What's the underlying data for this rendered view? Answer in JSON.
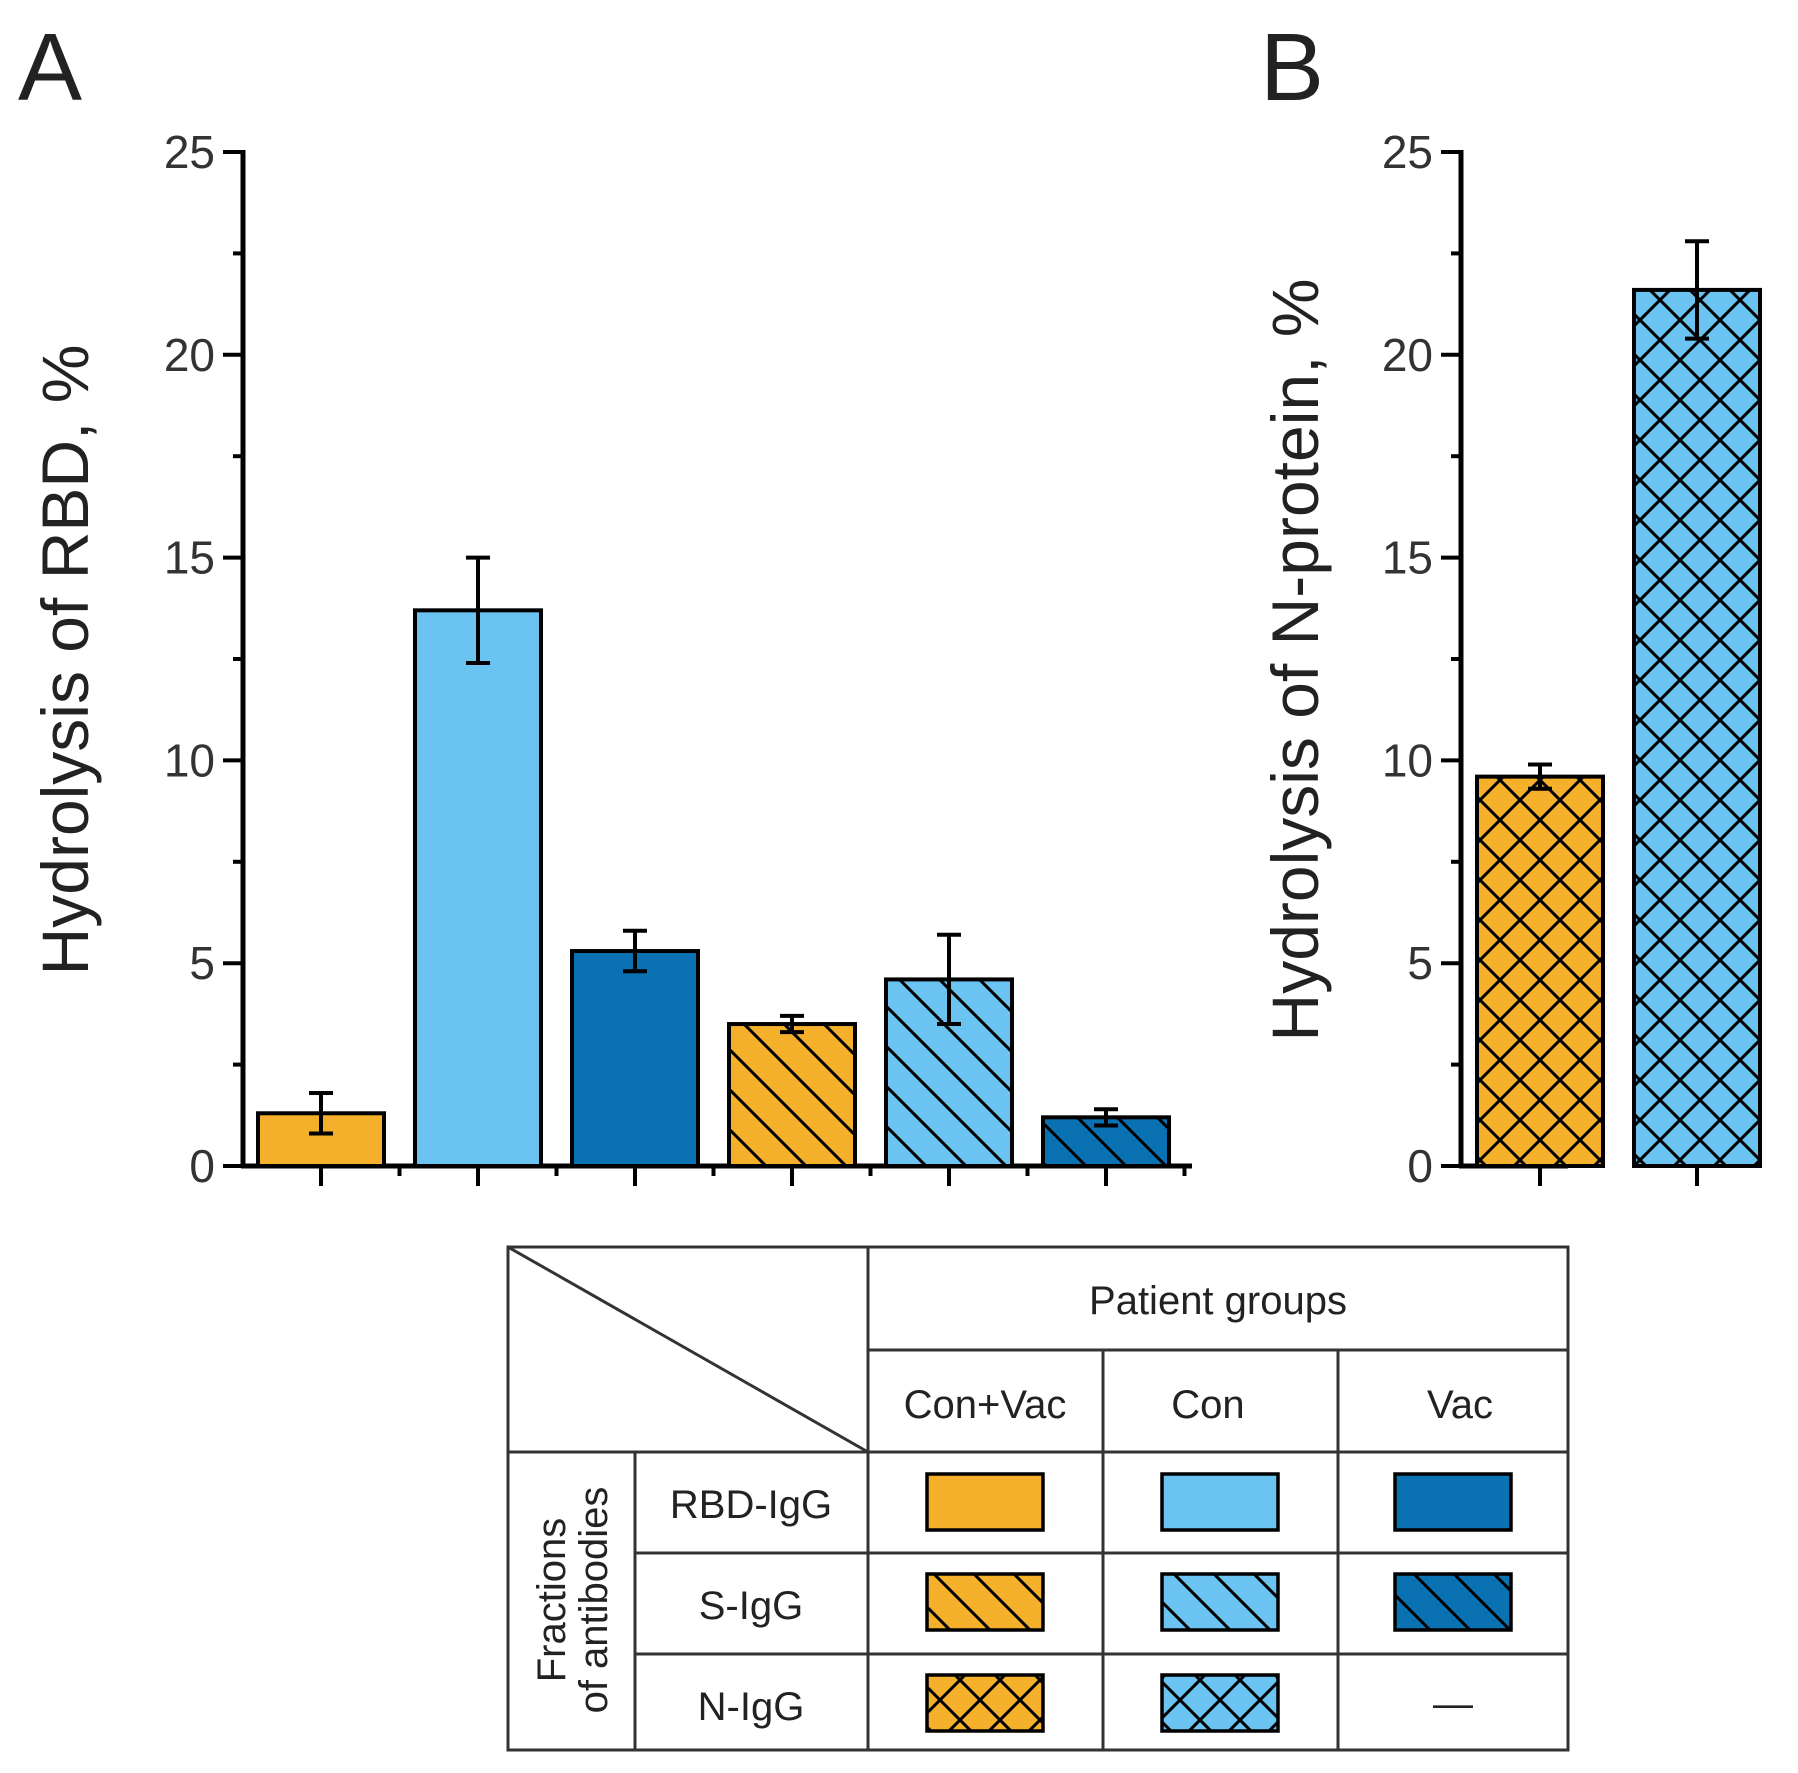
{
  "panels": {
    "a": "A",
    "b": "B"
  },
  "colors": {
    "orange": "#F5B02B",
    "light_blue": "#6AC3F0",
    "dark_blue": "#0A71B3"
  },
  "chart_data": [
    {
      "type": "bar",
      "panel": "A",
      "title": "",
      "xlabel": "",
      "ylabel": "Hydrolysis of RBD,  %",
      "ylim": [
        0,
        25
      ],
      "yticks": [
        "0",
        "5",
        "10",
        "15",
        "20",
        "25"
      ],
      "bars": [
        {
          "group": "Con+Vac",
          "fraction": "RBD-IgG",
          "value": 1.3,
          "error": 0.5,
          "color": "#F5B02B",
          "pattern": "none"
        },
        {
          "group": "Con",
          "fraction": "RBD-IgG",
          "value": 13.7,
          "error": 1.3,
          "color": "#6AC3F0",
          "pattern": "none"
        },
        {
          "group": "Vac",
          "fraction": "RBD-IgG",
          "value": 5.3,
          "error": 0.5,
          "color": "#0A71B3",
          "pattern": "none"
        },
        {
          "group": "Con+Vac",
          "fraction": "S-IgG",
          "value": 3.5,
          "error": 0.2,
          "color": "#F5B02B",
          "pattern": "diag"
        },
        {
          "group": "Con",
          "fraction": "S-IgG",
          "value": 4.6,
          "error": 1.1,
          "color": "#6AC3F0",
          "pattern": "diag"
        },
        {
          "group": "Vac",
          "fraction": "S-IgG",
          "value": 1.2,
          "error": 0.2,
          "color": "#0A71B3",
          "pattern": "diag"
        }
      ]
    },
    {
      "type": "bar",
      "panel": "B",
      "title": "",
      "xlabel": "",
      "ylabel": "Hydrolysis of N-protein,  %",
      "ylim": [
        0,
        25
      ],
      "yticks": [
        "0",
        "5",
        "10",
        "15",
        "20",
        "25"
      ],
      "bars": [
        {
          "group": "Con+Vac",
          "fraction": "N-IgG",
          "value": 9.6,
          "error": 0.3,
          "color": "#F5B02B",
          "pattern": "cross"
        },
        {
          "group": "Con",
          "fraction": "N-IgG",
          "value": 21.6,
          "error": 1.2,
          "color": "#6AC3F0",
          "pattern": "cross"
        }
      ]
    }
  ],
  "legend_table": {
    "header": "Patient groups",
    "row_header": "Fractions of antibodies",
    "row_header_lines": [
      "Fractions",
      "of antibodies"
    ],
    "groups": [
      "Con+Vac",
      "Con",
      "Vac"
    ],
    "rows": [
      {
        "label": "RBD-IgG",
        "pattern": "none",
        "cells": [
          "#F5B02B",
          "#6AC3F0",
          "#0A71B3"
        ]
      },
      {
        "label": "S-IgG",
        "pattern": "diag",
        "cells": [
          "#F5B02B",
          "#6AC3F0",
          "#0A71B3"
        ]
      },
      {
        "label": "N-IgG",
        "pattern": "cross",
        "cells": [
          "#F5B02B",
          "#6AC3F0",
          "—"
        ]
      }
    ]
  }
}
